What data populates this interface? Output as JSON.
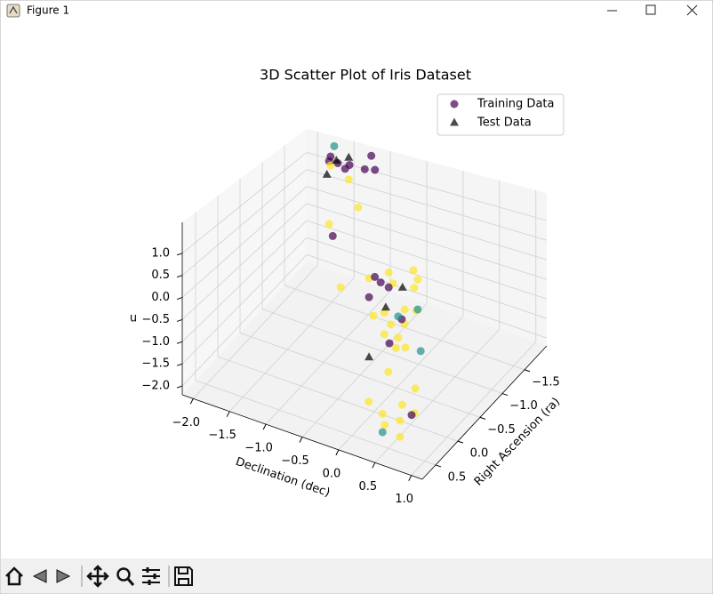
{
  "window": {
    "title": "Figure 1"
  },
  "chart_data": {
    "type": "scatter3d",
    "title": "3D Scatter Plot of Iris Dataset",
    "xlabel": "Declination (dec)",
    "ylabel": "Right Ascension (ra)",
    "zlabel": "u",
    "xlim": [
      -2.15,
      1.15
    ],
    "ylim": [
      -2.0,
      0.8
    ],
    "zlim": [
      -2.2,
      1.7
    ],
    "xticks": [
      {
        "value": -2,
        "label": "−2.0"
      },
      {
        "value": -1.5,
        "label": "−1.5"
      },
      {
        "value": -1,
        "label": "−1.0"
      },
      {
        "value": -0.5,
        "label": "−0.5"
      },
      {
        "value": 0,
        "label": "0.0"
      },
      0.5,
      {
        "value": 1,
        "label": "1.0"
      }
    ],
    "yticks": [
      {
        "value": -1.5,
        "label": "−1.5"
      },
      {
        "value": -1,
        "label": "−1.0"
      },
      {
        "value": -0.5,
        "label": "−0.5"
      },
      {
        "value": 0,
        "label": "0.0"
      },
      0.5
    ],
    "zticks": [
      {
        "value": -2,
        "label": "−2.0"
      },
      {
        "value": -1.5,
        "label": "−1.5"
      },
      {
        "value": -1,
        "label": "−1.0"
      },
      {
        "value": -0.5,
        "label": "−0.5"
      },
      {
        "value": 0,
        "label": "0.0"
      },
      0.5,
      {
        "value": 1,
        "label": "1.0"
      }
    ],
    "grid": true,
    "legend": "upper right",
    "series": [
      {
        "name": "Training Data",
        "marker": "circle",
        "x": [
          -1.7,
          -1.65,
          -1.6,
          -1.5,
          -1.44,
          -1.23,
          -1.14,
          -1.09,
          -1.72,
          -1.7,
          -1.45,
          -1.32,
          -1.72,
          -1.67,
          -0.95,
          -0.56,
          -0.29,
          0.05,
          0.11,
          0.06,
          -0.23,
          -0.07,
          0.09,
          -0.35,
          -0.5,
          -0.26,
          -0.07,
          -0.35,
          -0.16,
          -0.06,
          -0.19,
          -0.48,
          -0.4,
          -0.29,
          -0.56,
          -0.11,
          -0.28,
          -0.16,
          0.11,
          0.15,
          0.5,
          0.87,
          0.23,
          0.42,
          0.69,
          0.86,
          0.66,
          0.45,
          0.66,
          0.82,
          0.42
        ],
        "y": [
          -1.8,
          -1.8,
          -1.8,
          -1.8,
          -1.8,
          -1.8,
          -1.8,
          -1.8,
          -1.8,
          -1.8,
          -1.8,
          -1.8,
          -1.8,
          -1.8,
          -0.8,
          -0.8,
          -0.8,
          -0.8,
          -0.8,
          -0.8,
          -0.8,
          -0.8,
          -0.8,
          -0.8,
          -0.8,
          -0.8,
          -0.8,
          -0.8,
          -0.8,
          -0.8,
          -0.8,
          -0.8,
          -0.8,
          -0.8,
          -0.8,
          -0.8,
          -0.8,
          -0.8,
          -0.8,
          -0.8,
          0.5,
          0.5,
          0.5,
          0.5,
          0.5,
          0.5,
          0.5,
          0.5,
          0.5,
          0.5,
          0.5
        ],
        "z": [
          1.35,
          1.67,
          1.22,
          1.12,
          1.26,
          1.26,
          1.68,
          1.32,
          1.21,
          1.1,
          0.85,
          0.15,
          -0.57,
          -0.87,
          -0.66,
          -0.22,
          0.07,
          0.3,
          0.11,
          -0.11,
          -0.16,
          -0.7,
          -0.64,
          -0.94,
          -1.1,
          -1.17,
          -1.05,
          -1.46,
          -1.43,
          -1.61,
          -1.7,
          -0.14,
          -0.23,
          -0.29,
          -0.68,
          -0.96,
          -1.64,
          -0.92,
          -0.6,
          -1.57,
          -0.58,
          -0.75,
          -1.35,
          -1.51,
          -1.18,
          -1.27,
          -1.53,
          -1.73,
          -1.87,
          -1.33,
          -1.9
        ],
        "colors": [
          "#440154",
          "#21918c",
          "#440154",
          "#440154",
          "#440154",
          "#440154",
          "#440154",
          "#440154",
          "#440154",
          "#fde725",
          "#fde725",
          "#fde725",
          "#fde725",
          "#440154",
          "#fde725",
          "#fde725",
          "#fde725",
          "#fde725",
          "#fde725",
          "#fde725",
          "#fde725",
          "#fde725",
          "#fde725",
          "#fde725",
          "#fde725",
          "#fde725",
          "#fde725",
          "#fde725",
          "#fde725",
          "#fde725",
          "#fde725",
          "#440154",
          "#440154",
          "#440154",
          "#440154",
          "#440154",
          "#440154",
          "#21918c",
          "#21918c",
          "#21918c",
          "#fde725",
          "#fde725",
          "#fde725",
          "#fde725",
          "#fde725",
          "#fde725",
          "#fde725",
          "#fde725",
          "#fde725",
          "#440154",
          "#21918c"
        ]
      },
      {
        "name": "Test Data",
        "marker": "triangle",
        "color": "#000000",
        "x": [
          -1.75,
          -1.62,
          -1.45,
          -0.1,
          -0.33,
          -0.56
        ],
        "y": [
          -1.8,
          -1.8,
          -1.8,
          -0.8,
          -0.8,
          -0.8
        ],
        "z": [
          0.81,
          1.28,
          1.46,
          -0.19,
          -0.8,
          -2.15
        ]
      }
    ]
  }
}
